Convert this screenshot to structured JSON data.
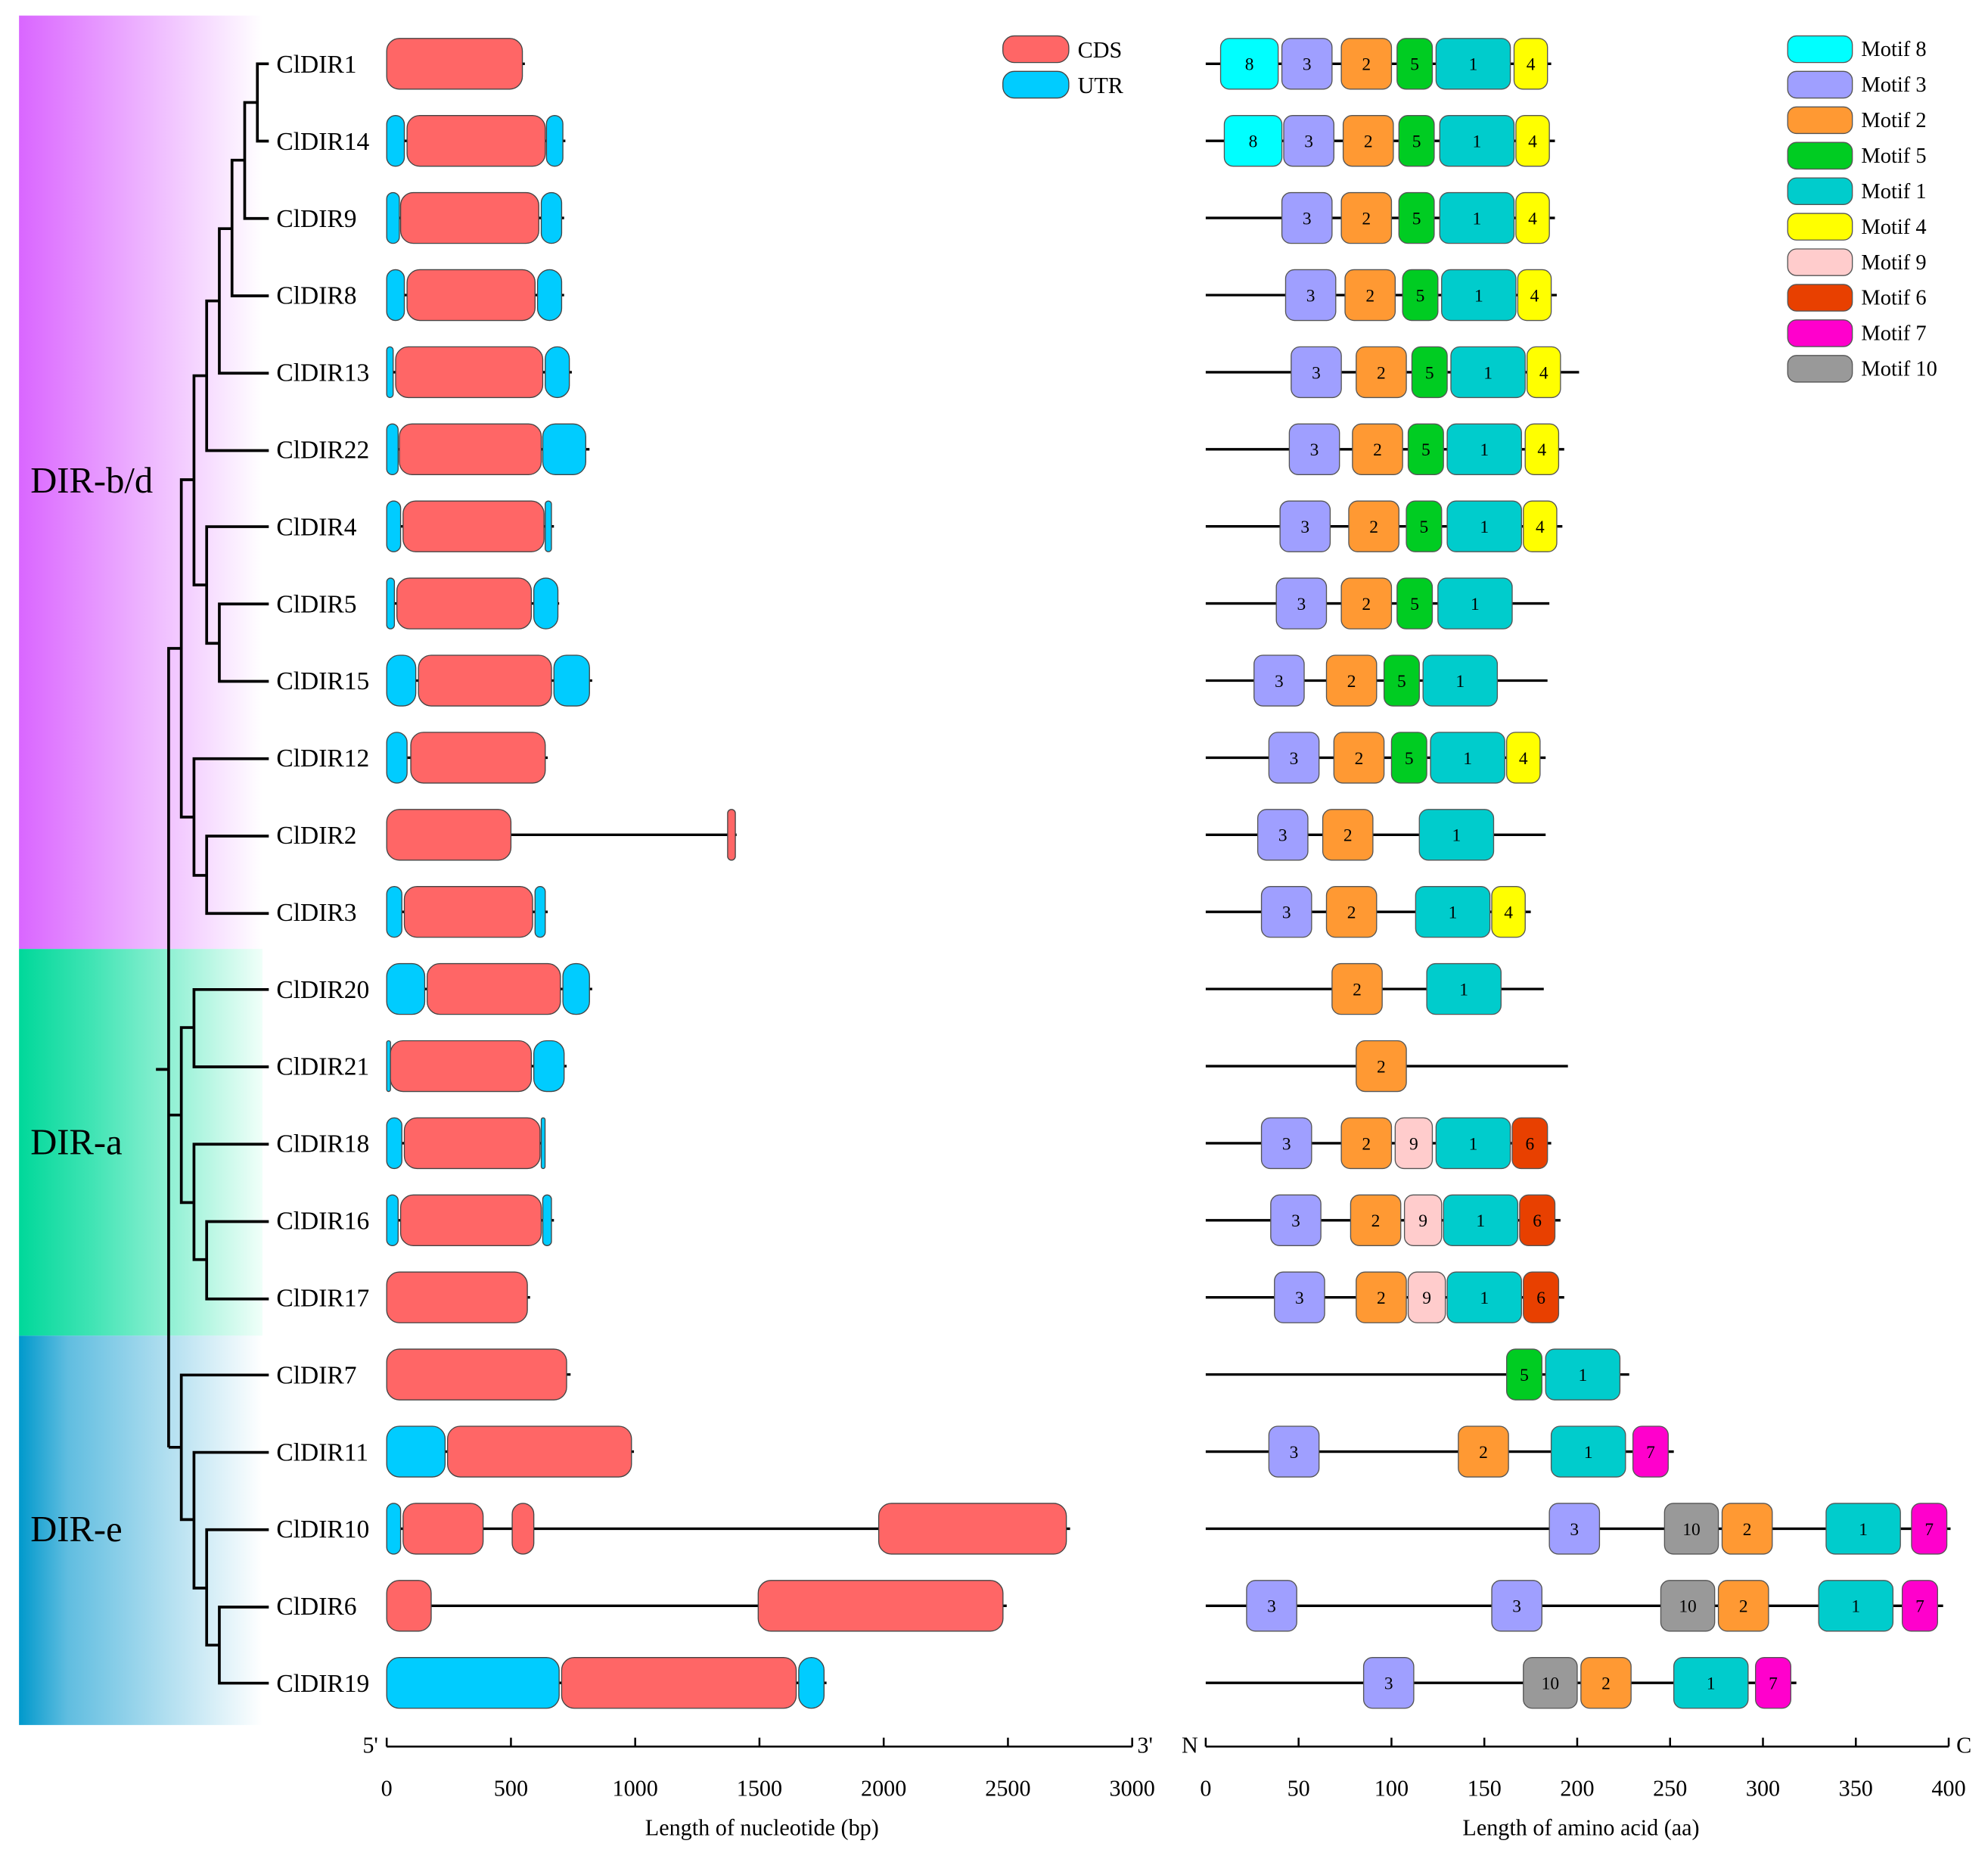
{
  "clades": [
    {
      "name": "DIR-b/d",
      "color": "#d966ff"
    },
    {
      "name": "DIR-a",
      "color": "#00d89a"
    },
    {
      "name": "DIR-e",
      "color": "#0099cc"
    }
  ],
  "gene_legend": [
    {
      "label": "CDS",
      "color": "#ff6666"
    },
    {
      "label": "UTR",
      "color": "#00ccff"
    }
  ],
  "motif_legend": [
    {
      "id": "8",
      "label": "Motif 8",
      "color": "#00ffff",
      "length_aa": 31
    },
    {
      "id": "3",
      "label": "Motif 3",
      "color": "#9f9fff",
      "length_aa": 27
    },
    {
      "id": "2",
      "label": "Motif 2",
      "color": "#ff9933",
      "length_aa": 27
    },
    {
      "id": "5",
      "label": "Motif 5",
      "color": "#00cc22",
      "length_aa": 19
    },
    {
      "id": "1",
      "label": "Motif 1",
      "color": "#00cccc",
      "length_aa": 40
    },
    {
      "id": "4",
      "label": "Motif 4",
      "color": "#ffff00",
      "length_aa": 18
    },
    {
      "id": "9",
      "label": "Motif 9",
      "color": "#ffcccc",
      "length_aa": 20
    },
    {
      "id": "6",
      "label": "Motif 6",
      "color": "#e84000",
      "length_aa": 19
    },
    {
      "id": "7",
      "label": "Motif 7",
      "color": "#ff00cc",
      "length_aa": 19
    },
    {
      "id": "10",
      "label": "Motif 10",
      "color": "#999999",
      "length_aa": 29
    }
  ],
  "gene_axis": {
    "start_label": "5'",
    "end_label": "3'",
    "ticks": [
      0,
      500,
      1000,
      1500,
      2000,
      2500,
      3000
    ],
    "max": 3000,
    "xlabel": "Length of nucleotide (bp)"
  },
  "protein_axis": {
    "start_label": "N",
    "end_label": "C",
    "ticks": [
      0,
      50,
      100,
      150,
      200,
      250,
      300,
      350,
      400
    ],
    "max": 400,
    "xlabel": "Length of amino acid (aa)"
  },
  "genes": [
    {
      "name": "ClDIR1",
      "clade": 0,
      "gene_len": 556,
      "segments": [
        [
          "CDS",
          0,
          546
        ]
      ],
      "prot_len": 186,
      "motifs": [
        [
          "8",
          8
        ],
        [
          "3",
          41
        ],
        [
          "2",
          73
        ],
        [
          "5",
          103
        ],
        [
          "1",
          124
        ],
        [
          "4",
          166
        ]
      ]
    },
    {
      "name": "ClDIR14",
      "clade": 0,
      "gene_len": 719,
      "segments": [
        [
          "UTR",
          0,
          71
        ],
        [
          "CDS",
          82,
          638
        ],
        [
          "UTR",
          643,
          709
        ]
      ],
      "prot_len": 188,
      "motifs": [
        [
          "8",
          10
        ],
        [
          "3",
          42
        ],
        [
          "2",
          74
        ],
        [
          "5",
          104
        ],
        [
          "1",
          126
        ],
        [
          "4",
          167
        ]
      ]
    },
    {
      "name": "ClDIR9",
      "clade": 0,
      "gene_len": 714,
      "segments": [
        [
          "UTR",
          0,
          51
        ],
        [
          "CDS",
          56,
          612
        ],
        [
          "UTR",
          622,
          704
        ]
      ],
      "prot_len": 188,
      "motifs": [
        [
          "3",
          41
        ],
        [
          "2",
          73
        ],
        [
          "5",
          104
        ],
        [
          "1",
          126
        ],
        [
          "4",
          167
        ]
      ]
    },
    {
      "name": "ClDIR8",
      "clade": 0,
      "gene_len": 714,
      "segments": [
        [
          "UTR",
          0,
          71
        ],
        [
          "CDS",
          82,
          597
        ],
        [
          "UTR",
          607,
          704
        ]
      ],
      "prot_len": 189,
      "motifs": [
        [
          "3",
          43
        ],
        [
          "2",
          75
        ],
        [
          "5",
          106
        ],
        [
          "1",
          127
        ],
        [
          "4",
          168
        ]
      ]
    },
    {
      "name": "ClDIR13",
      "clade": 0,
      "gene_len": 745,
      "segments": [
        [
          "UTR",
          0,
          26
        ],
        [
          "CDS",
          36,
          628
        ],
        [
          "UTR",
          638,
          735
        ]
      ],
      "prot_len": 201,
      "motifs": [
        [
          "3",
          46
        ],
        [
          "2",
          81
        ],
        [
          "5",
          111
        ],
        [
          "1",
          132
        ],
        [
          "4",
          173
        ]
      ]
    },
    {
      "name": "ClDIR22",
      "clade": 0,
      "gene_len": 816,
      "segments": [
        [
          "UTR",
          0,
          46
        ],
        [
          "CDS",
          51,
          622
        ],
        [
          "UTR",
          628,
          801
        ]
      ],
      "prot_len": 193,
      "motifs": [
        [
          "3",
          45
        ],
        [
          "2",
          79
        ],
        [
          "5",
          109
        ],
        [
          "1",
          130
        ],
        [
          "4",
          172
        ]
      ]
    },
    {
      "name": "ClDIR4",
      "clade": 0,
      "gene_len": 673,
      "segments": [
        [
          "UTR",
          0,
          56
        ],
        [
          "CDS",
          66,
          633
        ],
        [
          "UTR",
          638,
          663
        ]
      ],
      "prot_len": 192,
      "motifs": [
        [
          "3",
          40
        ],
        [
          "2",
          77
        ],
        [
          "5",
          108
        ],
        [
          "1",
          130
        ],
        [
          "4",
          171
        ]
      ]
    },
    {
      "name": "ClDIR5",
      "clade": 0,
      "gene_len": 694,
      "segments": [
        [
          "UTR",
          0,
          31
        ],
        [
          "CDS",
          41,
          582
        ],
        [
          "UTR",
          592,
          689
        ]
      ],
      "prot_len": 185,
      "motifs": [
        [
          "3",
          38
        ],
        [
          "2",
          73
        ],
        [
          "5",
          103
        ],
        [
          "1",
          125
        ]
      ]
    },
    {
      "name": "ClDIR15",
      "clade": 0,
      "gene_len": 827,
      "segments": [
        [
          "UTR",
          0,
          117
        ],
        [
          "CDS",
          128,
          663
        ],
        [
          "UTR",
          673,
          816
        ]
      ],
      "prot_len": 184,
      "motifs": [
        [
          "3",
          26
        ],
        [
          "2",
          65
        ],
        [
          "5",
          96
        ],
        [
          "1",
          117
        ]
      ]
    },
    {
      "name": "ClDIR12",
      "clade": 0,
      "gene_len": 648,
      "segments": [
        [
          "UTR",
          0,
          82
        ],
        [
          "CDS",
          97,
          638
        ]
      ],
      "prot_len": 183,
      "motifs": [
        [
          "3",
          34
        ],
        [
          "2",
          69
        ],
        [
          "5",
          100
        ],
        [
          "1",
          121
        ],
        [
          "4",
          162
        ]
      ]
    },
    {
      "name": "ClDIR2",
      "clade": 0,
      "gene_len": 1408,
      "segments": [
        [
          "CDS",
          0,
          500
        ],
        [
          "CDS",
          1372,
          1403
        ]
      ],
      "prot_len": 183,
      "motifs": [
        [
          "3",
          28
        ],
        [
          "2",
          63
        ],
        [
          "1",
          115
        ]
      ]
    },
    {
      "name": "ClDIR3",
      "clade": 0,
      "gene_len": 648,
      "segments": [
        [
          "UTR",
          0,
          61
        ],
        [
          "CDS",
          71,
          587
        ],
        [
          "UTR",
          597,
          638
        ]
      ],
      "prot_len": 175,
      "motifs": [
        [
          "3",
          30
        ],
        [
          "2",
          65
        ],
        [
          "1",
          113
        ],
        [
          "4",
          154
        ]
      ]
    },
    {
      "name": "ClDIR20",
      "clade": 1,
      "gene_len": 827,
      "segments": [
        [
          "UTR",
          0,
          153
        ],
        [
          "CDS",
          163,
          699
        ],
        [
          "UTR",
          709,
          816
        ]
      ],
      "prot_len": 182,
      "motifs": [
        [
          "2",
          68
        ],
        [
          "1",
          119
        ]
      ]
    },
    {
      "name": "ClDIR21",
      "clade": 1,
      "gene_len": 724,
      "segments": [
        [
          "UTR",
          0,
          10
        ],
        [
          "CDS",
          15,
          582
        ],
        [
          "UTR",
          592,
          714
        ]
      ],
      "prot_len": 195,
      "motifs": [
        [
          "2",
          81
        ]
      ]
    },
    {
      "name": "ClDIR18",
      "clade": 1,
      "gene_len": 633,
      "segments": [
        [
          "UTR",
          0,
          61
        ],
        [
          "CDS",
          71,
          617
        ],
        [
          "UTR",
          622,
          628
        ]
      ],
      "prot_len": 186,
      "motifs": [
        [
          "3",
          30
        ],
        [
          "2",
          73
        ],
        [
          "9",
          102
        ],
        [
          "1",
          124
        ],
        [
          "6",
          165
        ]
      ]
    },
    {
      "name": "ClDIR16",
      "clade": 1,
      "gene_len": 673,
      "segments": [
        [
          "UTR",
          0,
          46
        ],
        [
          "CDS",
          56,
          622
        ],
        [
          "UTR",
          628,
          663
        ]
      ],
      "prot_len": 191,
      "motifs": [
        [
          "3",
          35
        ],
        [
          "2",
          78
        ],
        [
          "9",
          107
        ],
        [
          "1",
          128
        ],
        [
          "6",
          169
        ]
      ]
    },
    {
      "name": "ClDIR17",
      "clade": 1,
      "gene_len": 577,
      "segments": [
        [
          "CDS",
          0,
          566
        ]
      ],
      "prot_len": 193,
      "motifs": [
        [
          "3",
          37
        ],
        [
          "2",
          81
        ],
        [
          "9",
          109
        ],
        [
          "1",
          130
        ],
        [
          "6",
          171
        ]
      ]
    },
    {
      "name": "ClDIR7",
      "clade": 2,
      "gene_len": 740,
      "segments": [
        [
          "CDS",
          0,
          724
        ]
      ],
      "prot_len": 228,
      "motifs": [
        [
          "5",
          162
        ],
        [
          "1",
          183
        ]
      ]
    },
    {
      "name": "ClDIR11",
      "clade": 2,
      "gene_len": 995,
      "segments": [
        [
          "UTR",
          0,
          235
        ],
        [
          "CDS",
          245,
          985
        ]
      ],
      "prot_len": 252,
      "motifs": [
        [
          "3",
          34
        ],
        [
          "2",
          136
        ],
        [
          "1",
          186
        ],
        [
          "7",
          230
        ]
      ]
    },
    {
      "name": "ClDIR10",
      "clade": 2,
      "gene_len": 2750,
      "segments": [
        [
          "UTR",
          0,
          56
        ],
        [
          "CDS",
          66,
          388
        ],
        [
          "CDS",
          505,
          592
        ],
        [
          "CDS",
          1980,
          2735
        ]
      ],
      "prot_len": 401,
      "motifs": [
        [
          "3",
          185
        ],
        [
          "10",
          247
        ],
        [
          "2",
          278
        ],
        [
          "1",
          334
        ],
        [
          "7",
          380
        ]
      ]
    },
    {
      "name": "ClDIR6",
      "clade": 2,
      "gene_len": 2495,
      "segments": [
        [
          "CDS",
          0,
          179
        ],
        [
          "CDS",
          1495,
          2480
        ]
      ],
      "prot_len": 397,
      "motifs": [
        [
          "3",
          22
        ],
        [
          "3",
          154
        ],
        [
          "10",
          245
        ],
        [
          "2",
          276
        ],
        [
          "1",
          330
        ],
        [
          "7",
          375
        ]
      ]
    },
    {
      "name": "ClDIR19",
      "clade": 2,
      "gene_len": 1770,
      "segments": [
        [
          "UTR",
          0,
          694
        ],
        [
          "CDS",
          704,
          1648
        ],
        [
          "UTR",
          1658,
          1760
        ]
      ],
      "prot_len": 318,
      "motifs": [
        [
          "3",
          85
        ],
        [
          "10",
          171
        ],
        [
          "2",
          202
        ],
        [
          "1",
          252
        ],
        [
          "7",
          296
        ]
      ]
    }
  ]
}
